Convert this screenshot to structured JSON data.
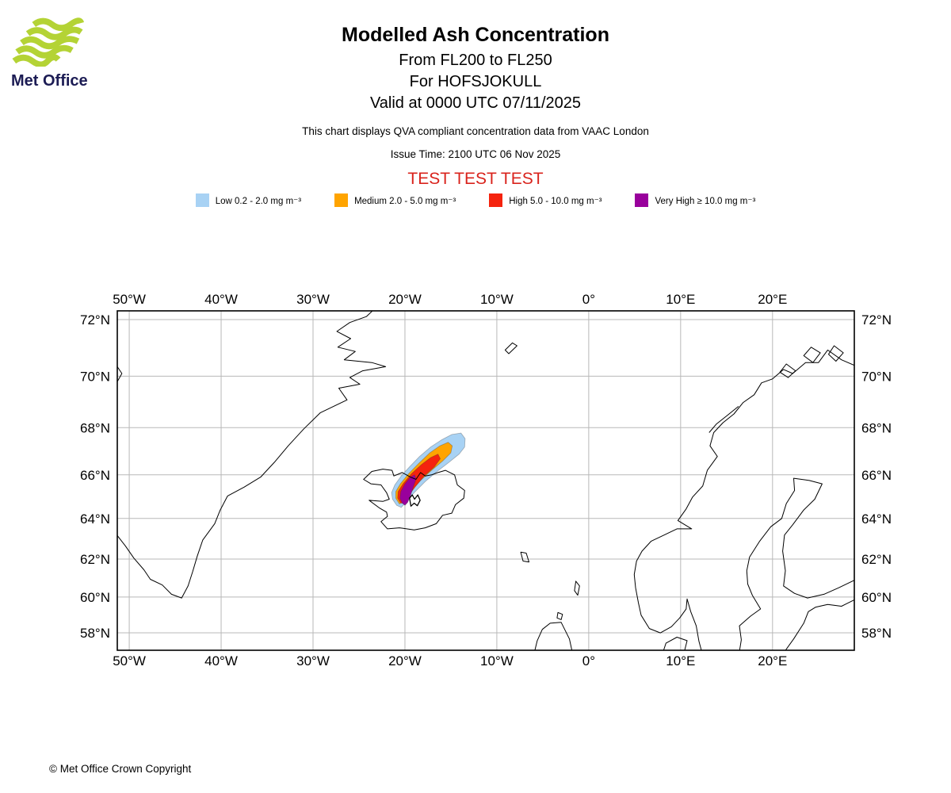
{
  "logo": {
    "brand": "Met Office",
    "swoosh_color": "#b4d335",
    "text_color": "#1c1c54"
  },
  "header": {
    "title": "Modelled Ash Concentration",
    "flight_levels": "From FL200 to FL250",
    "volcano": "For HOFSJOKULL",
    "valid_time": "Valid at 0000 UTC 07/11/2025",
    "description": "This chart displays QVA compliant concentration data from VAAC London",
    "issue_time": "Issue Time: 2100 UTC 06 Nov 2025",
    "test_banner": "TEST TEST TEST",
    "test_banner_color": "#d9231c"
  },
  "legend": {
    "items": [
      {
        "key": "low",
        "label": "Low 0.2 - 2.0 mg m⁻³",
        "color": "#a8d2f4"
      },
      {
        "key": "medium",
        "label": "Medium 2.0 - 5.0 mg m⁻³",
        "color": "#ffa400"
      },
      {
        "key": "high",
        "label": "High 5.0 - 10.0 mg m⁻³",
        "color": "#f5230e"
      },
      {
        "key": "very-high",
        "label": "Very High ≥ 10.0 mg m⁻³",
        "color": "#99009c"
      }
    ]
  },
  "map": {
    "grid_color": "#b8b8b8",
    "border_color": "#000000",
    "coast_color": "#000000",
    "projection": {
      "type": "mercator",
      "lon_min": -51.3,
      "lon_max": 28.9,
      "lat_min": 57.0,
      "lat_max": 72.33
    },
    "lon_ticks": [
      {
        "value": -50,
        "label": "50°W"
      },
      {
        "value": -40,
        "label": "40°W"
      },
      {
        "value": -30,
        "label": "30°W"
      },
      {
        "value": -20,
        "label": "20°W"
      },
      {
        "value": -10,
        "label": "10°W"
      },
      {
        "value": 0,
        "label": "0°"
      },
      {
        "value": 10,
        "label": "10°E"
      },
      {
        "value": 20,
        "label": "20°E"
      }
    ],
    "lat_ticks": [
      {
        "value": 58,
        "label": "58°N"
      },
      {
        "value": 60,
        "label": "60°N"
      },
      {
        "value": 62,
        "label": "62°N"
      },
      {
        "value": 64,
        "label": "64°N"
      },
      {
        "value": 66,
        "label": "66°N"
      },
      {
        "value": 68,
        "label": "68°N"
      },
      {
        "value": 70,
        "label": "70°N"
      },
      {
        "value": 72,
        "label": "72°N"
      }
    ],
    "plume": {
      "source_name": "HOFSJOKULL",
      "source_marker": [
        [
          -19.5,
          64.95
        ],
        [
          -19.2,
          65.1
        ],
        [
          -18.95,
          64.9
        ],
        [
          -18.6,
          65.1
        ],
        [
          -18.35,
          64.85
        ],
        [
          -18.65,
          64.6
        ],
        [
          -19.0,
          64.72
        ],
        [
          -19.35,
          64.58
        ]
      ],
      "layers": [
        {
          "name": "low",
          "color": "#a8d2f4",
          "points": [
            [
              -20.9,
              64.62
            ],
            [
              -21.35,
              64.9
            ],
            [
              -21.45,
              65.2
            ],
            [
              -21.1,
              65.55
            ],
            [
              -20.4,
              65.95
            ],
            [
              -19.5,
              66.35
            ],
            [
              -18.4,
              66.8
            ],
            [
              -17.2,
              67.2
            ],
            [
              -16.0,
              67.5
            ],
            [
              -14.9,
              67.72
            ],
            [
              -13.9,
              67.78
            ],
            [
              -13.45,
              67.55
            ],
            [
              -13.5,
              67.2
            ],
            [
              -14.1,
              66.9
            ],
            [
              -15.2,
              66.55
            ],
            [
              -16.5,
              66.15
            ],
            [
              -17.8,
              65.7
            ],
            [
              -19.0,
              65.2
            ],
            [
              -19.9,
              64.75
            ],
            [
              -20.4,
              64.52
            ]
          ]
        },
        {
          "name": "medium",
          "color": "#ffa400",
          "points": [
            [
              -20.6,
              64.68
            ],
            [
              -21.0,
              64.95
            ],
            [
              -21.0,
              65.25
            ],
            [
              -20.5,
              65.6
            ],
            [
              -19.6,
              66.05
            ],
            [
              -18.5,
              66.5
            ],
            [
              -17.3,
              66.95
            ],
            [
              -16.2,
              67.25
            ],
            [
              -15.3,
              67.4
            ],
            [
              -14.85,
              67.25
            ],
            [
              -15.0,
              66.95
            ],
            [
              -15.9,
              66.6
            ],
            [
              -17.1,
              66.2
            ],
            [
              -18.3,
              65.75
            ],
            [
              -19.4,
              65.25
            ],
            [
              -20.2,
              64.8
            ]
          ]
        },
        {
          "name": "high",
          "color": "#f5230e",
          "points": [
            [
              -20.45,
              64.72
            ],
            [
              -20.8,
              64.95
            ],
            [
              -20.75,
              65.25
            ],
            [
              -20.2,
              65.6
            ],
            [
              -19.3,
              66.05
            ],
            [
              -18.2,
              66.45
            ],
            [
              -17.2,
              66.75
            ],
            [
              -16.4,
              66.9
            ],
            [
              -16.15,
              66.7
            ],
            [
              -16.8,
              66.35
            ],
            [
              -17.9,
              65.95
            ],
            [
              -18.9,
              65.45
            ],
            [
              -19.8,
              64.95
            ],
            [
              -20.1,
              64.72
            ]
          ]
        },
        {
          "name": "very-high",
          "color": "#99009c",
          "points": [
            [
              -20.3,
              64.72
            ],
            [
              -20.55,
              64.95
            ],
            [
              -20.45,
              65.25
            ],
            [
              -20.0,
              65.6
            ],
            [
              -19.4,
              65.9
            ],
            [
              -18.95,
              66.0
            ],
            [
              -18.8,
              65.8
            ],
            [
              -19.1,
              65.45
            ],
            [
              -19.4,
              65.05
            ],
            [
              -19.7,
              64.75
            ],
            [
              -20.0,
              64.62
            ]
          ]
        }
      ]
    }
  },
  "footer": {
    "copyright": "© Met Office Crown Copyright"
  }
}
